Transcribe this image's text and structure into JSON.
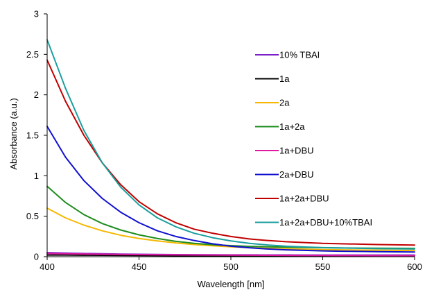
{
  "chart_data": {
    "type": "line",
    "title": "",
    "xlabel": "Wavelength [nm]",
    "ylabel": "Absorbance (a.u.)",
    "xlim": [
      400,
      600
    ],
    "ylim": [
      0,
      3
    ],
    "x_ticks": [
      "400",
      "450",
      "500",
      "550",
      "600"
    ],
    "y_ticks": [
      "0",
      "0.5",
      "1",
      "1.5",
      "2",
      "2.5",
      "3"
    ],
    "grid": false,
    "legend_position": "right",
    "x": [
      400,
      410,
      420,
      430,
      440,
      450,
      460,
      470,
      480,
      490,
      500,
      510,
      520,
      530,
      540,
      550,
      560,
      570,
      580,
      590,
      600
    ],
    "series": [
      {
        "name": "10% TBAI",
        "color": "#7b1fc8",
        "values": [
          0.05,
          0.045,
          0.04,
          0.036,
          0.032,
          0.03,
          0.028,
          0.026,
          0.025,
          0.024,
          0.023,
          0.022,
          0.021,
          0.021,
          0.02,
          0.02,
          0.02,
          0.02,
          0.02,
          0.02,
          0.02
        ]
      },
      {
        "name": "1a",
        "color": "#000000",
        "values": [
          0.02,
          0.02,
          0.018,
          0.017,
          0.016,
          0.015,
          0.014,
          0.013,
          0.012,
          0.012,
          0.011,
          0.011,
          0.01,
          0.01,
          0.01,
          0.01,
          0.01,
          0.01,
          0.01,
          0.01,
          0.01
        ]
      },
      {
        "name": "2a",
        "color": "#f5b800",
        "values": [
          0.6,
          0.48,
          0.39,
          0.32,
          0.265,
          0.225,
          0.195,
          0.17,
          0.15,
          0.135,
          0.122,
          0.112,
          0.104,
          0.098,
          0.092,
          0.088,
          0.085,
          0.082,
          0.08,
          0.078,
          0.076
        ]
      },
      {
        "name": "1a+2a",
        "color": "#1e8c1e",
        "values": [
          0.87,
          0.67,
          0.52,
          0.41,
          0.33,
          0.27,
          0.225,
          0.19,
          0.165,
          0.148,
          0.137,
          0.128,
          0.122,
          0.118,
          0.114,
          0.111,
          0.108,
          0.106,
          0.105,
          0.104,
          0.103
        ]
      },
      {
        "name": "1a+DBU",
        "color": "#e01aa0",
        "values": [
          0.04,
          0.036,
          0.033,
          0.03,
          0.028,
          0.026,
          0.024,
          0.022,
          0.021,
          0.02,
          0.019,
          0.018,
          0.017,
          0.016,
          0.015,
          0.015,
          0.014,
          0.014,
          0.013,
          0.013,
          0.012
        ]
      },
      {
        "name": "2a+DBU",
        "color": "#1010d0",
        "values": [
          1.61,
          1.23,
          0.94,
          0.72,
          0.55,
          0.42,
          0.32,
          0.25,
          0.2,
          0.16,
          0.13,
          0.11,
          0.095,
          0.085,
          0.078,
          0.072,
          0.068,
          0.065,
          0.062,
          0.06,
          0.058
        ]
      },
      {
        "name": "1a+2a+DBU",
        "color": "#c00000",
        "values": [
          2.43,
          1.92,
          1.5,
          1.16,
          0.89,
          0.68,
          0.53,
          0.42,
          0.34,
          0.29,
          0.25,
          0.22,
          0.2,
          0.185,
          0.175,
          0.165,
          0.16,
          0.155,
          0.15,
          0.147,
          0.144
        ]
      },
      {
        "name": "1a+2a+DBU+10%TBAI",
        "color": "#1a9e9e",
        "values": [
          2.68,
          2.08,
          1.56,
          1.16,
          0.86,
          0.64,
          0.48,
          0.37,
          0.29,
          0.235,
          0.195,
          0.165,
          0.145,
          0.13,
          0.12,
          0.113,
          0.108,
          0.104,
          0.1,
          0.097,
          0.095
        ]
      }
    ]
  }
}
